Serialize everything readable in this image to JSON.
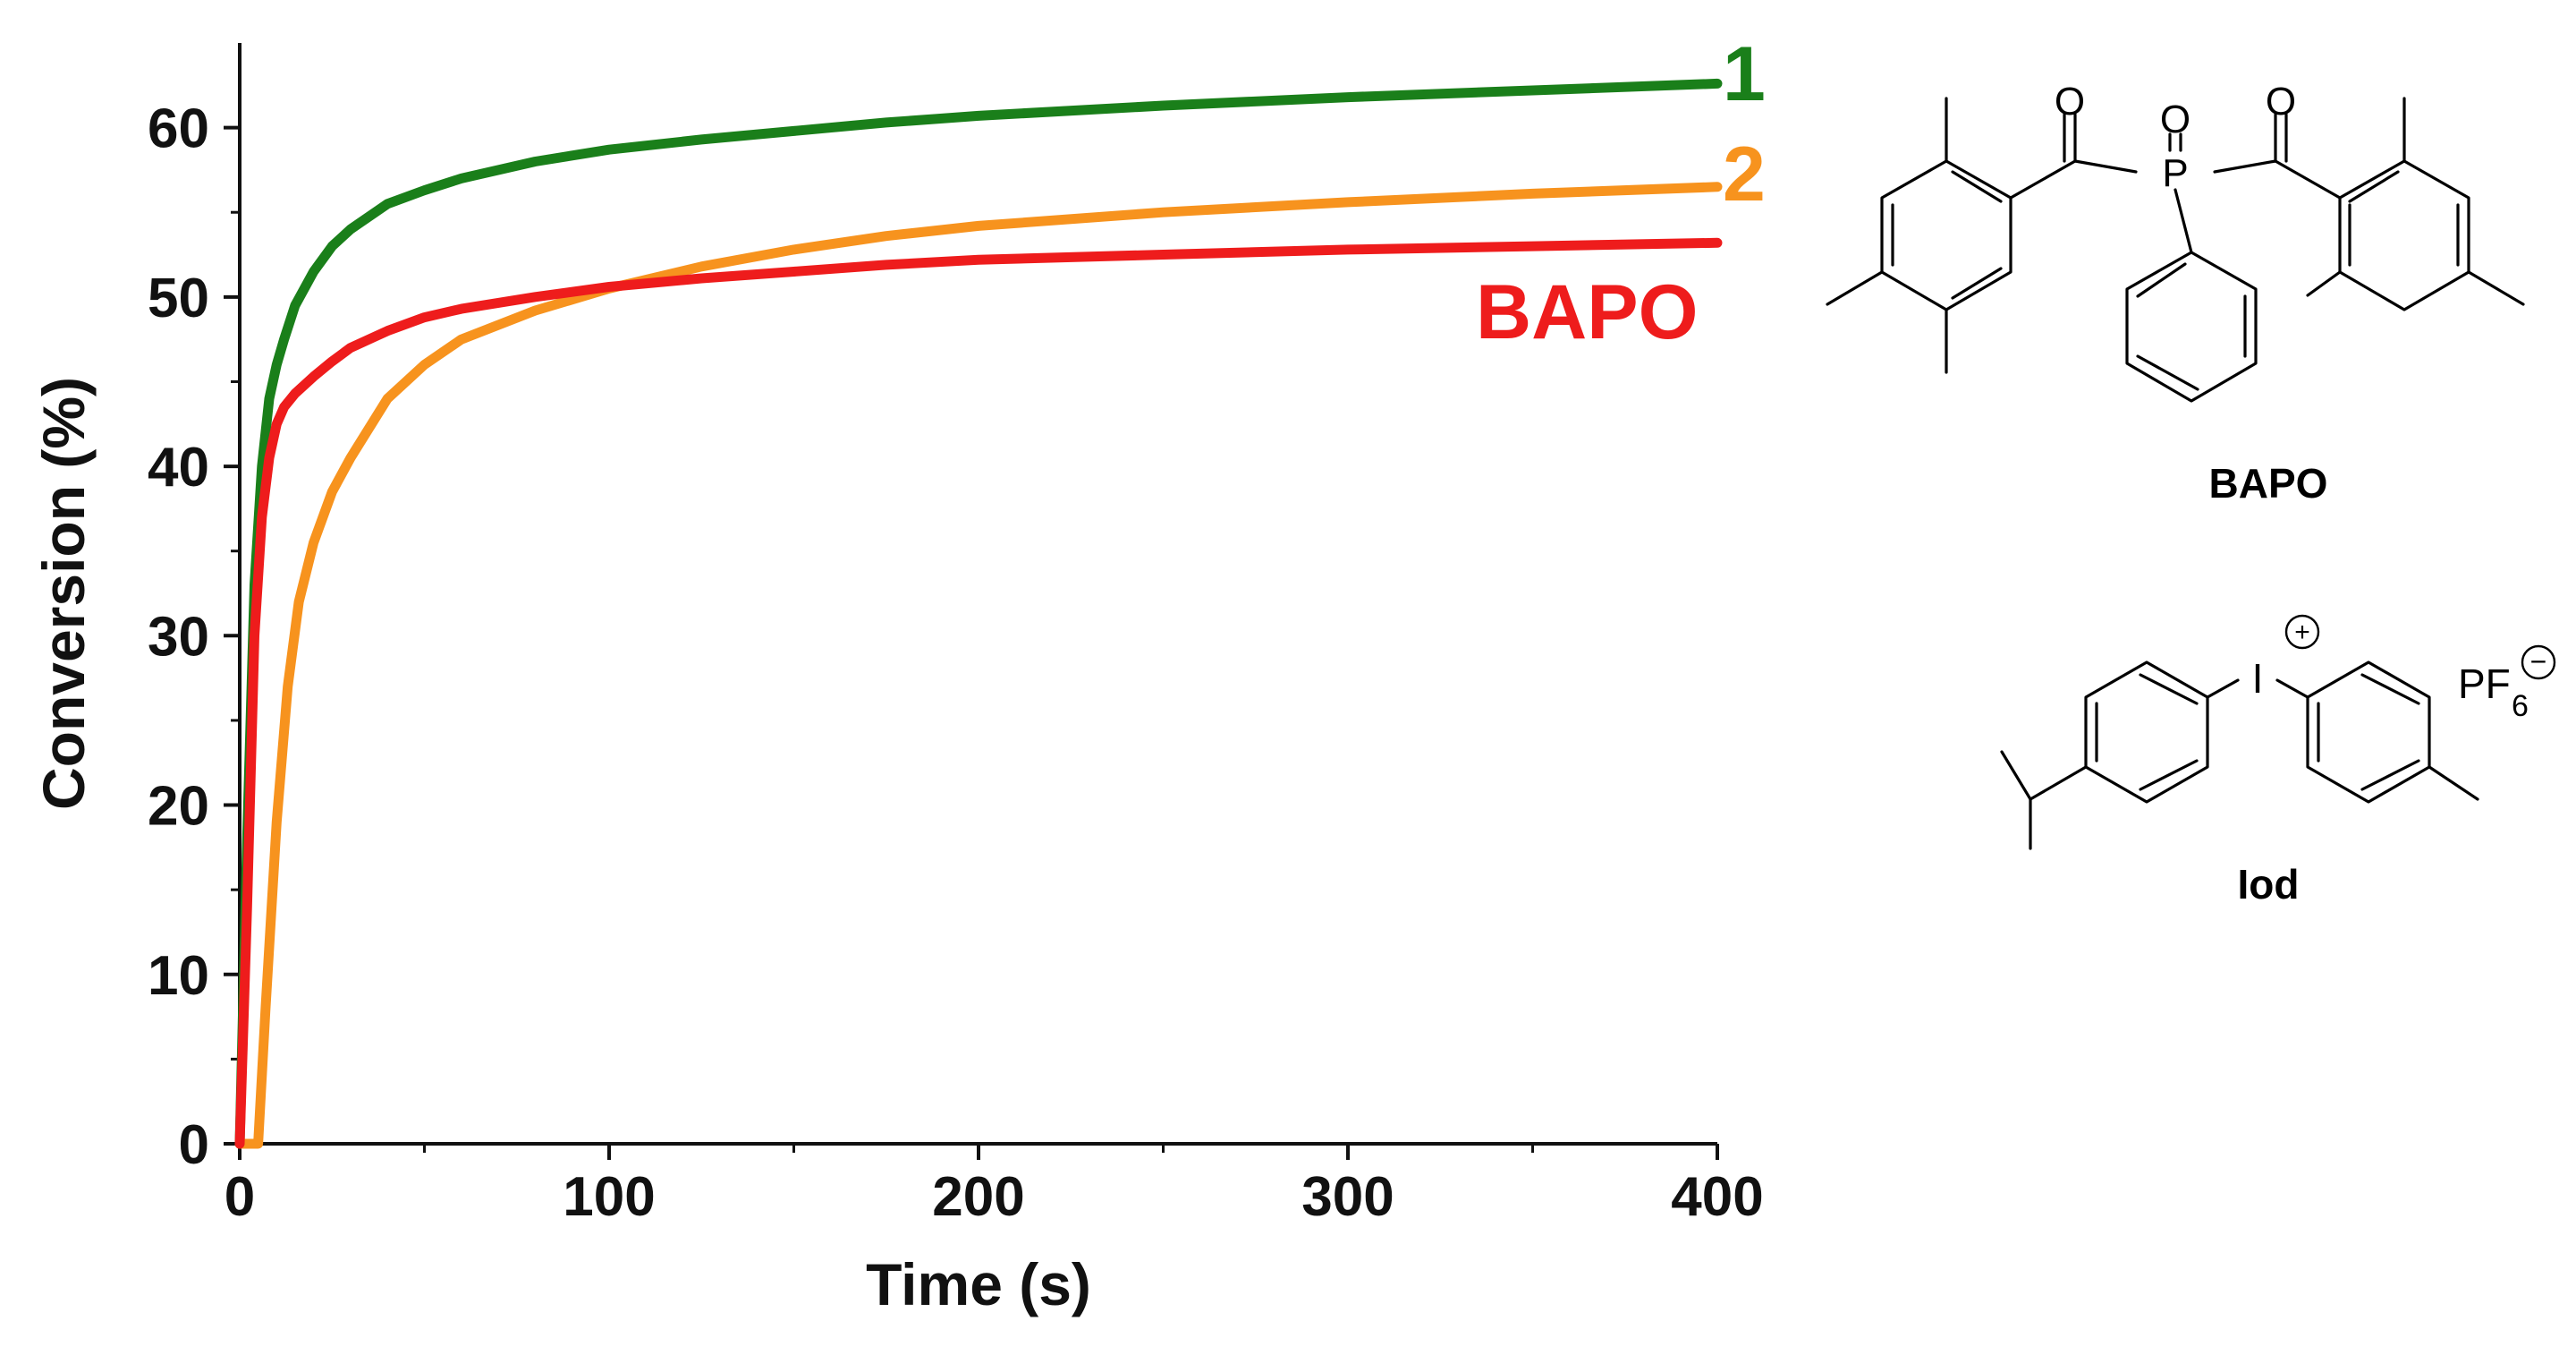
{
  "chart_data": {
    "type": "line",
    "title": "",
    "xlabel": "Time (s)",
    "ylabel": "Conversion (%)",
    "xlim": [
      0,
      400
    ],
    "ylim": [
      0,
      65
    ],
    "x_ticks": [
      0,
      100,
      200,
      300,
      400
    ],
    "y_ticks": [
      0,
      10,
      20,
      30,
      40,
      50,
      60
    ],
    "grid": false,
    "series": [
      {
        "name": "1",
        "color": "#1a7f1a",
        "x": [
          0,
          2,
          4,
          6,
          8,
          10,
          12,
          15,
          20,
          25,
          30,
          40,
          50,
          60,
          80,
          100,
          125,
          150,
          175,
          200,
          250,
          300,
          350,
          400
        ],
        "y": [
          0,
          18,
          33,
          40,
          44,
          46,
          47.5,
          49.5,
          51.5,
          53,
          54,
          55.5,
          56.3,
          57,
          58,
          58.7,
          59.3,
          59.8,
          60.3,
          60.7,
          61.3,
          61.8,
          62.2,
          62.6
        ]
      },
      {
        "name": "2",
        "color": "#f7931e",
        "x": [
          0,
          4,
          5,
          7,
          10,
          13,
          16,
          20,
          25,
          30,
          40,
          50,
          60,
          80,
          100,
          125,
          150,
          175,
          200,
          250,
          300,
          350,
          400
        ],
        "y": [
          0,
          0,
          0,
          8,
          19,
          27,
          32,
          35.5,
          38.5,
          40.5,
          44,
          46,
          47.5,
          49.2,
          50.5,
          51.8,
          52.8,
          53.6,
          54.2,
          55,
          55.6,
          56.1,
          56.5
        ]
      },
      {
        "name": "BAPO",
        "color": "#ee1c1c",
        "x": [
          0,
          2,
          4,
          6,
          8,
          10,
          12,
          15,
          20,
          25,
          30,
          40,
          50,
          60,
          80,
          100,
          125,
          150,
          175,
          200,
          250,
          300,
          350,
          400
        ],
        "y": [
          0,
          14,
          30,
          37,
          40.5,
          42.5,
          43.5,
          44.3,
          45.3,
          46.2,
          47,
          48,
          48.8,
          49.3,
          50,
          50.6,
          51.1,
          51.5,
          51.9,
          52.2,
          52.5,
          52.8,
          53,
          53.2
        ]
      }
    ],
    "annotations": [
      {
        "text": "1",
        "series": "1"
      },
      {
        "text": "2",
        "series": "2"
      },
      {
        "text": "BAPO",
        "series": "BAPO"
      }
    ]
  },
  "structures": {
    "bapo": {
      "name": "BAPO",
      "atoms": {
        "o_left": "O",
        "o_center": "O",
        "o_right": "O",
        "p": "P"
      }
    },
    "iod": {
      "name": "Iod",
      "atoms": {
        "iodine": "I",
        "plus": "+",
        "pf": "PF",
        "pf_sub": "6",
        "minus": "−"
      }
    }
  }
}
